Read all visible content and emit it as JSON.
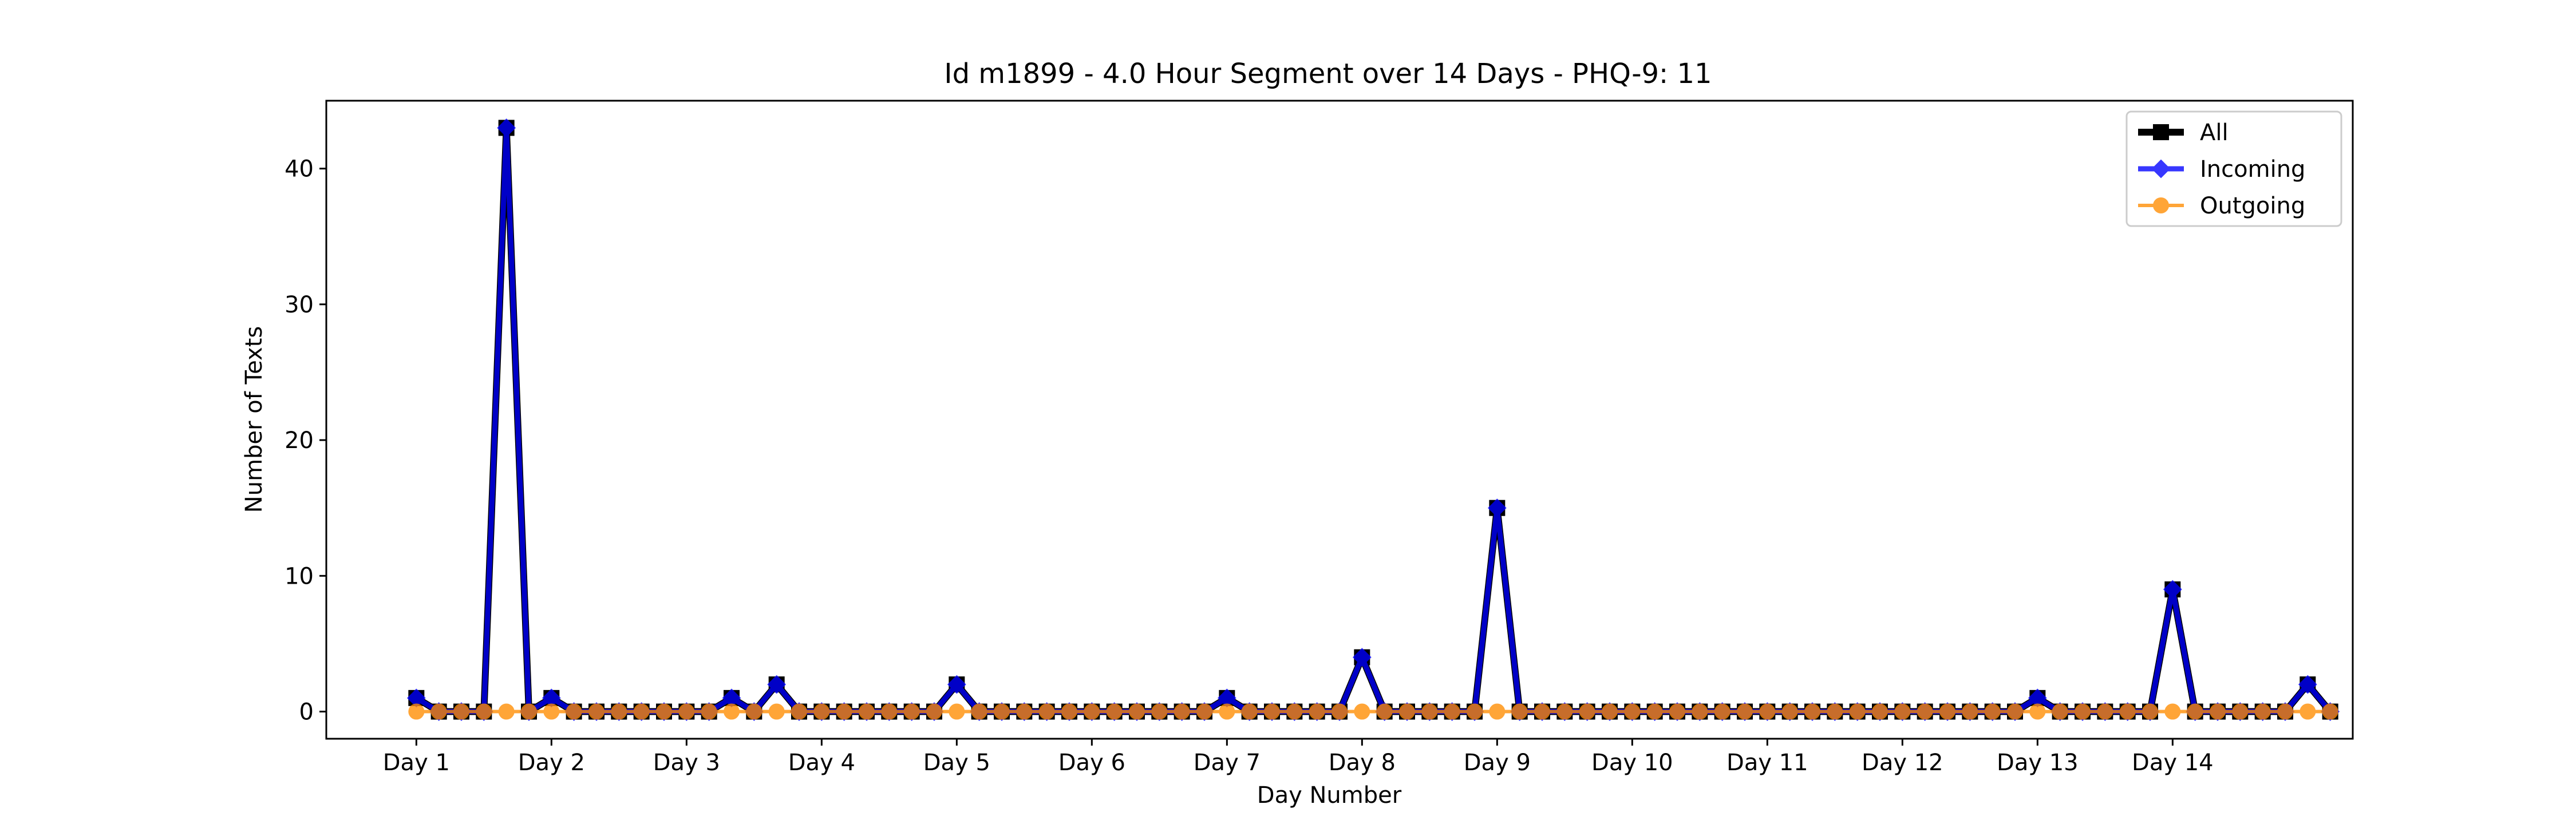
{
  "chart_data": {
    "type": "line",
    "title": "Id m1899 - 4.0 Hour Segment over 14 Days - PHQ-9: 11",
    "xlabel": "Day Number",
    "ylabel": "Number of Texts",
    "ylim": [
      -2,
      45
    ],
    "xlim": [
      -4,
      86
    ],
    "yticks": [
      0,
      10,
      20,
      30,
      40
    ],
    "xticks": [
      {
        "x": 0,
        "label": "Day 1"
      },
      {
        "x": 6,
        "label": "Day 2"
      },
      {
        "x": 12,
        "label": "Day 3"
      },
      {
        "x": 18,
        "label": "Day 4"
      },
      {
        "x": 24,
        "label": "Day 5"
      },
      {
        "x": 30,
        "label": "Day 6"
      },
      {
        "x": 36,
        "label": "Day 7"
      },
      {
        "x": 42,
        "label": "Day 8"
      },
      {
        "x": 48,
        "label": "Day 9"
      },
      {
        "x": 54,
        "label": "Day 10"
      },
      {
        "x": 60,
        "label": "Day 11"
      },
      {
        "x": 66,
        "label": "Day 12"
      },
      {
        "x": 72,
        "label": "Day 13"
      },
      {
        "x": 78,
        "label": "Day 14"
      }
    ],
    "grid": false,
    "legend_position": "top-right",
    "series": [
      {
        "name": "All",
        "color": "#000000",
        "marker": "square",
        "values": [
          1,
          0,
          0,
          0,
          43,
          0,
          1,
          0,
          0,
          0,
          0,
          0,
          0,
          0,
          1,
          0,
          2,
          0,
          0,
          0,
          0,
          0,
          0,
          0,
          2,
          0,
          0,
          0,
          0,
          0,
          0,
          0,
          0,
          0,
          0,
          0,
          1,
          0,
          0,
          0,
          0,
          0,
          4,
          0,
          0,
          0,
          0,
          0,
          15,
          0,
          0,
          0,
          0,
          0,
          0,
          0,
          0,
          0,
          0,
          0,
          0,
          0,
          0,
          0,
          0,
          0,
          0,
          0,
          0,
          0,
          0,
          0,
          1,
          0,
          0,
          0,
          0,
          0,
          9,
          0,
          0,
          0,
          0,
          0,
          2,
          0
        ]
      },
      {
        "name": "Incoming",
        "color": "#0000ff",
        "marker": "diamond",
        "values": [
          1,
          0,
          0,
          0,
          43,
          0,
          1,
          0,
          0,
          0,
          0,
          0,
          0,
          0,
          1,
          0,
          2,
          0,
          0,
          0,
          0,
          0,
          0,
          0,
          2,
          0,
          0,
          0,
          0,
          0,
          0,
          0,
          0,
          0,
          0,
          0,
          1,
          0,
          0,
          0,
          0,
          0,
          4,
          0,
          0,
          0,
          0,
          0,
          15,
          0,
          0,
          0,
          0,
          0,
          0,
          0,
          0,
          0,
          0,
          0,
          0,
          0,
          0,
          0,
          0,
          0,
          0,
          0,
          0,
          0,
          0,
          0,
          1,
          0,
          0,
          0,
          0,
          0,
          9,
          0,
          0,
          0,
          0,
          0,
          2,
          0
        ]
      },
      {
        "name": "Outgoing",
        "color": "#ff8c00",
        "marker": "circle",
        "values": [
          0,
          0,
          0,
          0,
          0,
          0,
          0,
          0,
          0,
          0,
          0,
          0,
          0,
          0,
          0,
          0,
          0,
          0,
          0,
          0,
          0,
          0,
          0,
          0,
          0,
          0,
          0,
          0,
          0,
          0,
          0,
          0,
          0,
          0,
          0,
          0,
          0,
          0,
          0,
          0,
          0,
          0,
          0,
          0,
          0,
          0,
          0,
          0,
          0,
          0,
          0,
          0,
          0,
          0,
          0,
          0,
          0,
          0,
          0,
          0,
          0,
          0,
          0,
          0,
          0,
          0,
          0,
          0,
          0,
          0,
          0,
          0,
          0,
          0,
          0,
          0,
          0,
          0,
          0,
          0,
          0,
          0,
          0,
          0,
          0,
          0
        ]
      }
    ]
  }
}
